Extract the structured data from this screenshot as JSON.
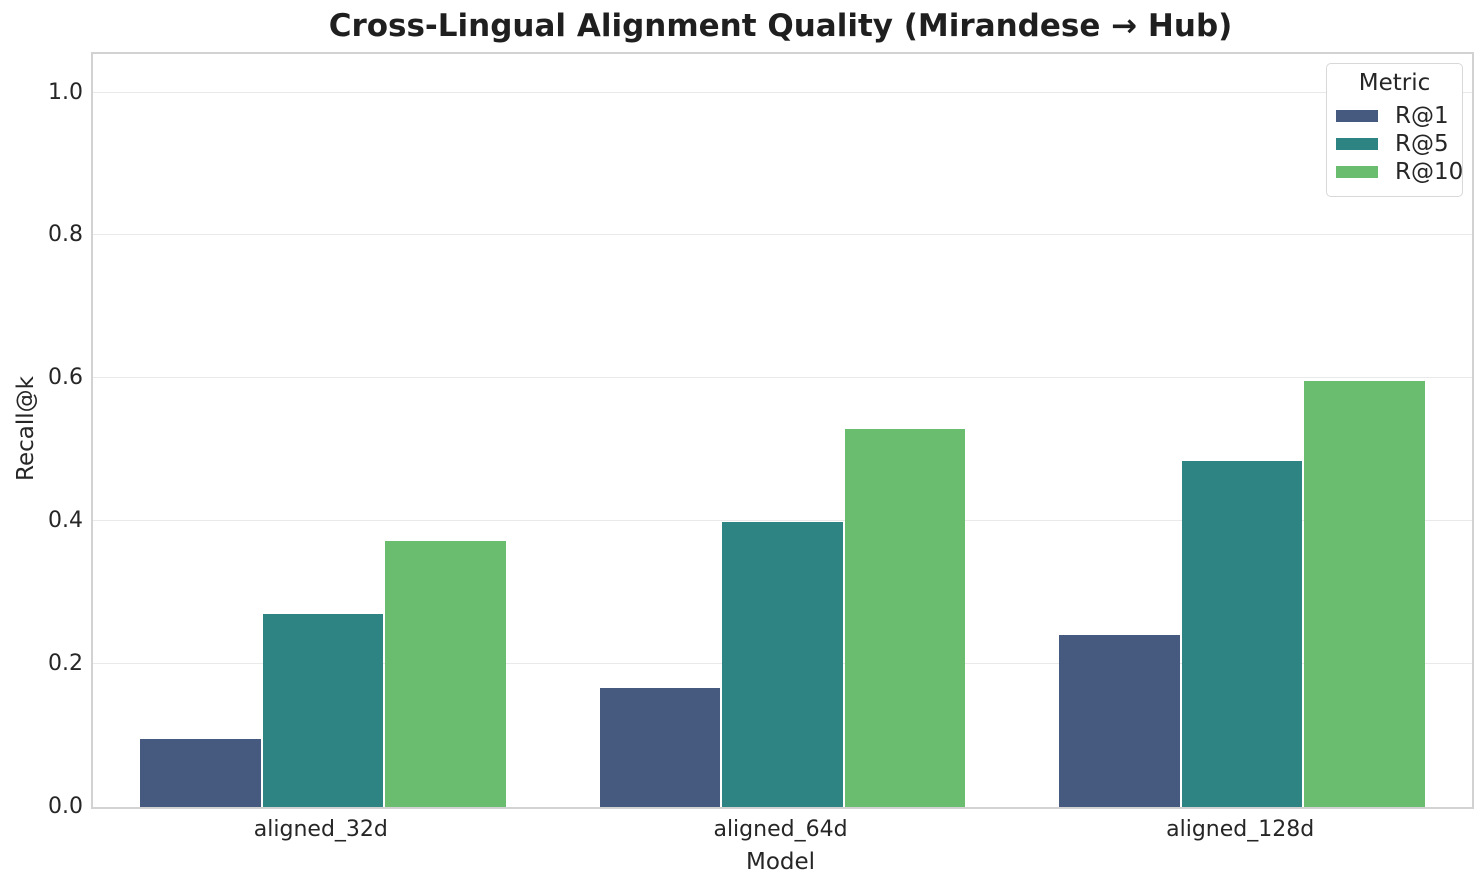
{
  "chart_data": {
    "type": "bar",
    "title": "Cross-Lingual Alignment Quality (Mirandese → Hub)",
    "xlabel": "Model",
    "ylabel": "Recall@k",
    "categories": [
      "aligned_32d",
      "aligned_64d",
      "aligned_128d"
    ],
    "series": [
      {
        "name": "R@1",
        "color": "#455a7e",
        "values": [
          0.095,
          0.166,
          0.241
        ]
      },
      {
        "name": "R@5",
        "color": "#2e8482",
        "values": [
          0.27,
          0.399,
          0.485
        ]
      },
      {
        "name": "R@10",
        "color": "#6abc6e",
        "values": [
          0.373,
          0.529,
          0.596
        ]
      }
    ],
    "legend": {
      "title": "Metric",
      "position": "upper right"
    },
    "axis": {
      "ylim": [
        0,
        1.054
      ],
      "yticks": [
        0.0,
        0.2,
        0.4,
        0.6,
        0.8,
        1.0
      ],
      "ytick_labels": [
        "0.0",
        "0.2",
        "0.4",
        "0.6",
        "0.8",
        "1.0"
      ],
      "grid": "horizontal",
      "group_width_fraction": 0.8
    },
    "colors": {
      "text": "#262626",
      "grid": "#e9e9e9",
      "spine": "#d2d2d2",
      "background": "#ffffff"
    }
  }
}
